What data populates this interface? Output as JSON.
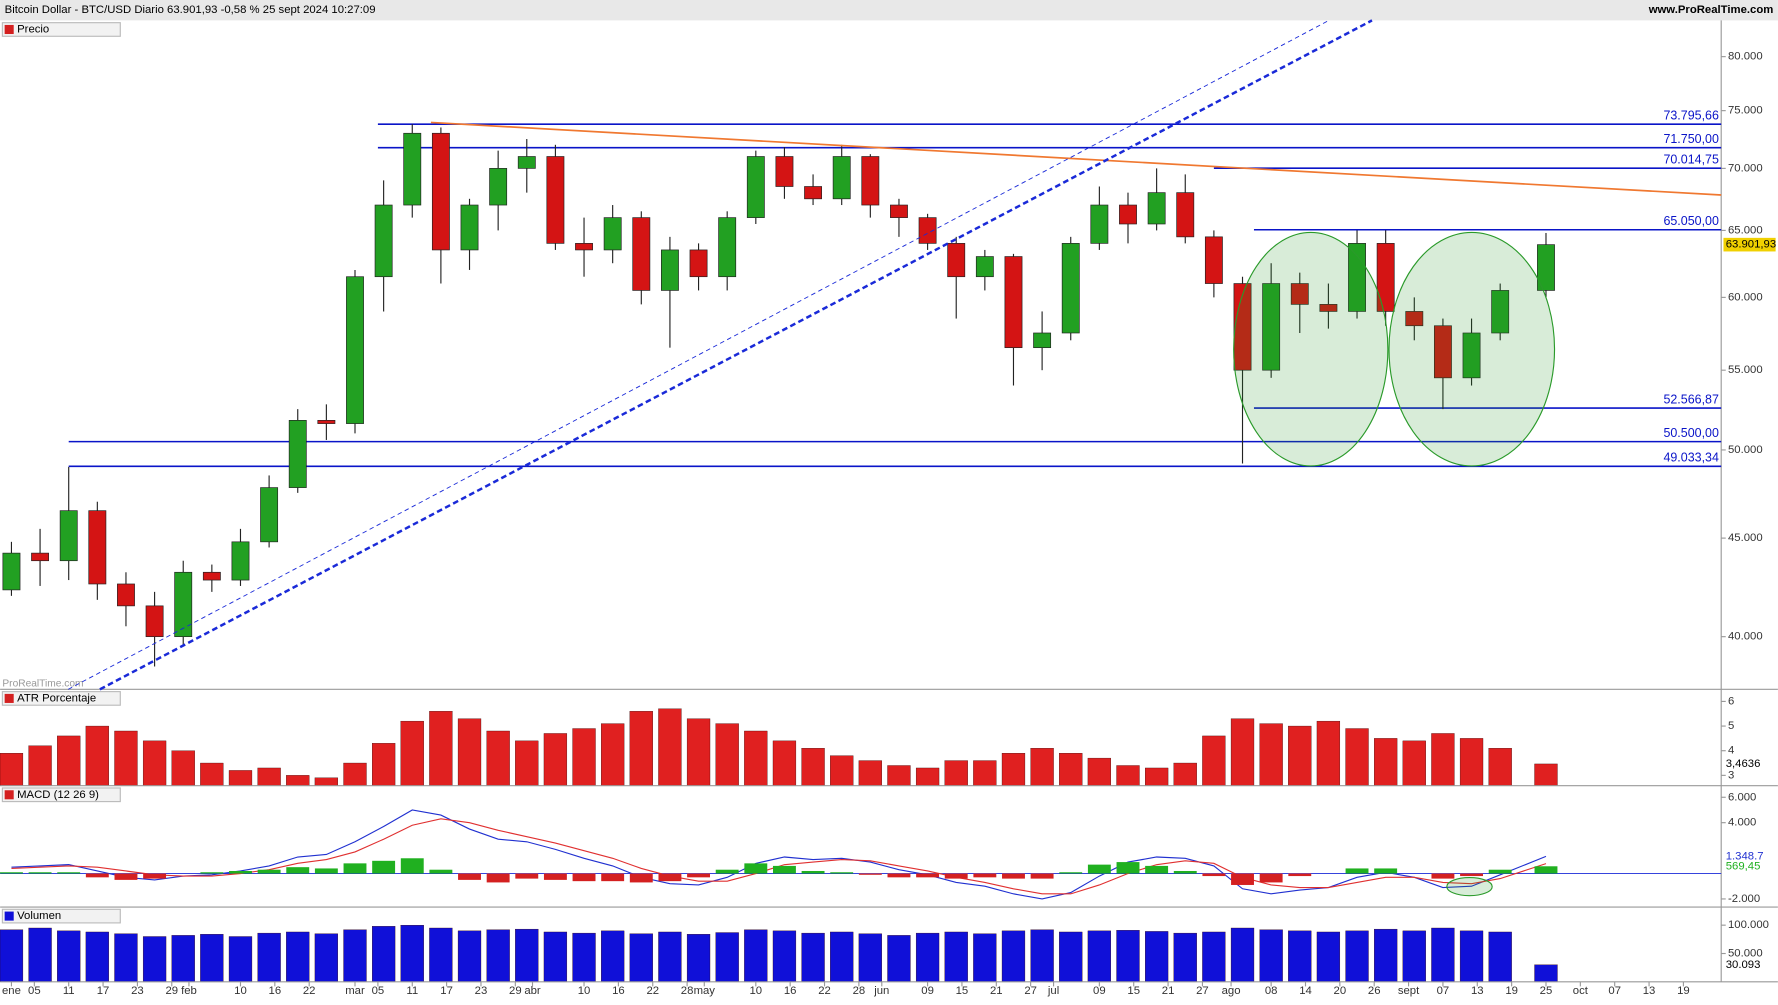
{
  "header": {
    "title": "Bitcoin Dollar - BTC/USD Diario 63.901,93 -0,58 % 25 sept 2024 10:27:09",
    "site": "www.ProRealTime.com",
    "watermark": "ProRealTime.com"
  },
  "chart_data": [
    {
      "type": "candlestick",
      "title": "Precio",
      "log": true,
      "up_color": "#22a022",
      "down_color": "#d41414",
      "x": [
        0,
        5,
        10,
        15,
        20,
        25,
        30,
        35,
        40,
        45,
        50,
        55,
        60,
        65,
        70,
        75,
        80,
        85,
        90,
        95,
        100,
        105,
        110,
        115,
        120,
        125,
        130,
        135,
        140,
        145,
        150,
        155,
        160,
        165,
        170,
        175,
        180,
        185,
        190,
        195,
        200,
        205,
        210,
        215,
        220,
        225,
        230,
        235,
        240,
        245,
        250,
        255,
        260,
        268
      ],
      "open": [
        42300,
        44200,
        43800,
        46500,
        42600,
        41500,
        40000,
        43200,
        42800,
        44800,
        47800,
        51800,
        51600,
        61500,
        67000,
        73000,
        63500,
        67000,
        70000,
        71000,
        64000,
        63500,
        66000,
        60500,
        63500,
        61500,
        66000,
        71000,
        68500,
        67500,
        71000,
        67000,
        66000,
        64000,
        61500,
        63000,
        56500,
        57500,
        64000,
        67000,
        65500,
        68000,
        64500,
        61000,
        55000,
        61000,
        59500,
        59000,
        64000,
        59000,
        58000,
        54500,
        57500,
        60500
      ],
      "high": [
        44800,
        45500,
        49000,
        47000,
        43200,
        42200,
        43800,
        43600,
        45500,
        48500,
        52500,
        52800,
        62000,
        69000,
        73800,
        73500,
        67500,
        71500,
        72500,
        72000,
        66000,
        67000,
        66500,
        64500,
        64000,
        66500,
        71500,
        71800,
        69500,
        72000,
        71200,
        67500,
        66300,
        64500,
        63500,
        63200,
        59000,
        64500,
        68500,
        68000,
        70000,
        69500,
        65000,
        61500,
        62500,
        61800,
        61000,
        65000,
        65000,
        60000,
        58500,
        58500,
        61000,
        64800
      ],
      "low": [
        42000,
        42500,
        42800,
        41800,
        40500,
        38600,
        39600,
        42200,
        42500,
        44500,
        47500,
        50600,
        51000,
        59000,
        66000,
        61000,
        62000,
        65000,
        68000,
        63500,
        61500,
        62500,
        59500,
        56500,
        60500,
        60500,
        65500,
        67500,
        67000,
        67000,
        66000,
        64500,
        63500,
        58500,
        60500,
        54000,
        55000,
        57000,
        63500,
        64000,
        65000,
        64000,
        60000,
        49200,
        54500,
        57500,
        57800,
        58500,
        58000,
        57000,
        52500,
        54000,
        57000,
        60000
      ],
      "close": [
        44200,
        43800,
        46500,
        42600,
        41500,
        40000,
        43200,
        42800,
        44800,
        47800,
        51800,
        51600,
        61500,
        67000,
        73000,
        63500,
        67000,
        70000,
        71000,
        64000,
        63500,
        66000,
        60500,
        63500,
        61500,
        66000,
        71000,
        68500,
        67500,
        71000,
        67000,
        66000,
        64000,
        61500,
        63000,
        56500,
        57500,
        64000,
        67000,
        65500,
        68000,
        64500,
        61000,
        55000,
        61000,
        59500,
        59000,
        64000,
        59000,
        58000,
        54500,
        57500,
        60500,
        63901.93
      ],
      "last_label": "63.901,93",
      "xlim": [
        -1.98,
        298.6
      ],
      "ylim": [
        37560,
        83540
      ],
      "yticks": [
        {
          "value": 40000,
          "label": "40.000"
        },
        {
          "value": 45000,
          "label": "45.000"
        },
        {
          "value": 50000,
          "label": "50.000"
        },
        {
          "value": 55000,
          "label": "55.000"
        },
        {
          "value": 60000,
          "label": "60.000"
        },
        {
          "value": 65000,
          "label": "65.000"
        },
        {
          "value": 70000,
          "label": "70.000"
        },
        {
          "value": 75000,
          "label": "75.000"
        },
        {
          "value": 80000,
          "label": "80.000"
        }
      ],
      "levels": [
        {
          "value": 73795.66,
          "label": "73.795,66",
          "x_start": 64
        },
        {
          "value": 71750,
          "label": "71.750,00",
          "x_start": 64
        },
        {
          "value": 70014.75,
          "label": "70.014,75",
          "x_start": 210
        },
        {
          "value": 65050,
          "label": "65.050,00",
          "x_start": 217
        },
        {
          "value": 52566.87,
          "label": "52.566,87",
          "x_start": 217
        },
        {
          "value": 50500,
          "label": "50.500,00",
          "x_start": 10
        },
        {
          "value": 49033.34,
          "label": "49.033,34",
          "x_start": 10
        }
      ],
      "xticks": [
        {
          "value": 0,
          "label": "ene"
        },
        {
          "value": 4,
          "label": "05"
        },
        {
          "value": 10,
          "label": "11"
        },
        {
          "value": 16,
          "label": "17"
        },
        {
          "value": 22,
          "label": "23"
        },
        {
          "value": 28,
          "label": "29"
        },
        {
          "value": 31,
          "label": "feb"
        },
        {
          "value": 40,
          "label": "10"
        },
        {
          "value": 46,
          "label": "16"
        },
        {
          "value": 52,
          "label": "22"
        },
        {
          "value": 60,
          "label": "mar"
        },
        {
          "value": 64,
          "label": "05"
        },
        {
          "value": 70,
          "label": "11"
        },
        {
          "value": 76,
          "label": "17"
        },
        {
          "value": 82,
          "label": "23"
        },
        {
          "value": 88,
          "label": "29"
        },
        {
          "value": 91,
          "label": "abr"
        },
        {
          "value": 100,
          "label": "10"
        },
        {
          "value": 106,
          "label": "16"
        },
        {
          "value": 112,
          "label": "22"
        },
        {
          "value": 118,
          "label": "28"
        },
        {
          "value": 121,
          "label": "may"
        },
        {
          "value": 130,
          "label": "10"
        },
        {
          "value": 136,
          "label": "16"
        },
        {
          "value": 142,
          "label": "22"
        },
        {
          "value": 148,
          "label": "28"
        },
        {
          "value": 152,
          "label": "jun"
        },
        {
          "value": 160,
          "label": "09"
        },
        {
          "value": 166,
          "label": "15"
        },
        {
          "value": 172,
          "label": "21"
        },
        {
          "value": 178,
          "label": "27"
        },
        {
          "value": 182,
          "label": "jul"
        },
        {
          "value": 190,
          "label": "09"
        },
        {
          "value": 196,
          "label": "15"
        },
        {
          "value": 202,
          "label": "21"
        },
        {
          "value": 208,
          "label": "27"
        },
        {
          "value": 213,
          "label": "ago"
        },
        {
          "value": 220,
          "label": "08"
        },
        {
          "value": 226,
          "label": "14"
        },
        {
          "value": 232,
          "label": "20"
        },
        {
          "value": 238,
          "label": "26"
        },
        {
          "value": 244,
          "label": "sept"
        },
        {
          "value": 250,
          "label": "07"
        },
        {
          "value": 256,
          "label": "13"
        },
        {
          "value": 262,
          "label": "19"
        },
        {
          "value": 268,
          "label": "25"
        },
        {
          "value": 274,
          "label": "oct"
        },
        {
          "value": 280,
          "label": "07"
        },
        {
          "value": 286,
          "label": "13"
        },
        {
          "value": 292,
          "label": "19"
        }
      ]
    },
    {
      "type": "bar",
      "title": "ATR Porcentaje",
      "color": "#e02020",
      "values": [
        3.9,
        4.2,
        4.6,
        5.0,
        4.8,
        4.4,
        4.0,
        3.5,
        3.2,
        3.3,
        3.0,
        2.9,
        3.5,
        4.3,
        5.2,
        5.6,
        5.3,
        4.8,
        4.4,
        4.7,
        4.9,
        5.1,
        5.6,
        5.7,
        5.3,
        5.1,
        4.8,
        4.4,
        4.1,
        3.8,
        3.6,
        3.4,
        3.3,
        3.6,
        3.6,
        3.9,
        4.1,
        3.9,
        3.7,
        3.4,
        3.3,
        3.5,
        4.6,
        5.3,
        5.1,
        5.0,
        5.2,
        4.9,
        4.5,
        4.4,
        4.7,
        4.5,
        4.1,
        3.4636
      ],
      "last_label": "3,4636",
      "ylim": [
        2.58,
        6.49
      ],
      "yticks": [
        3,
        4,
        5,
        6
      ]
    },
    {
      "type": "line",
      "title": "MACD (12 26 9)",
      "series": [
        {
          "color": "#2030d0",
          "values": [
            500,
            600,
            700,
            200,
            -300,
            -500,
            -200,
            -100,
            200,
            600,
            1300,
            1500,
            2500,
            3700,
            5000,
            4600,
            3500,
            2700,
            2500,
            1900,
            1200,
            600,
            -300,
            -800,
            -900,
            -300,
            800,
            1300,
            1100,
            1200,
            900,
            300,
            -100,
            -700,
            -1000,
            -1600,
            -2000,
            -1500,
            -200,
            900,
            1300,
            1200,
            600,
            -1200,
            -1600,
            -1300,
            -1100,
            -300,
            100,
            -300,
            -1100,
            -1000,
            -100,
            1348.7
          ],
          "last_label": "1.348,7"
        },
        {
          "color": "#e03030",
          "values": [
            400,
            500,
            600,
            500,
            200,
            -100,
            -200,
            -200,
            0,
            300,
            800,
            1100,
            1700,
            2700,
            3800,
            4300,
            4000,
            3400,
            2900,
            2400,
            1800,
            1200,
            400,
            -200,
            -600,
            -600,
            0,
            700,
            900,
            1100,
            1000,
            600,
            200,
            -300,
            -700,
            -1200,
            -1600,
            -1600,
            -900,
            0,
            700,
            1000,
            800,
            -300,
            -900,
            -1100,
            -1100,
            -700,
            -300,
            -300,
            -700,
            -800,
            -400,
            779.29
          ]
        },
        {
          "type": "bar",
          "color": "#20b020",
          "down_color": "#d42020",
          "values": [
            100,
            100,
            100,
            -300,
            -500,
            -400,
            0,
            100,
            200,
            300,
            500,
            400,
            800,
            1000,
            1200,
            300,
            -500,
            -700,
            -400,
            -500,
            -600,
            -600,
            -700,
            -600,
            -300,
            300,
            800,
            600,
            200,
            100,
            -100,
            -300,
            -300,
            -400,
            -300,
            -400,
            -400,
            100,
            700,
            900,
            600,
            200,
            -200,
            -900,
            -700,
            -200,
            0,
            400,
            400,
            0,
            -400,
            -200,
            300,
            569.45
          ],
          "last_label": "569,45"
        }
      ],
      "ylim": [
        -2636,
        6909
      ],
      "yticks": [
        {
          "value": -2000,
          "label": "-2.000"
        },
        {
          "value": 4000,
          "label": "4.000"
        },
        {
          "value": 6000,
          "label": "6.000"
        }
      ]
    },
    {
      "type": "bar",
      "title": "Volumen",
      "color": "#1010d8",
      "values": [
        92000,
        95000,
        90000,
        88000,
        85000,
        80000,
        82000,
        84000,
        80000,
        86000,
        88000,
        85000,
        92000,
        98000,
        100000,
        95000,
        90000,
        92000,
        93000,
        88000,
        86000,
        90000,
        85000,
        88000,
        84000,
        87000,
        92000,
        90000,
        86000,
        88000,
        85000,
        82000,
        86000,
        88000,
        85000,
        90000,
        92000,
        88000,
        90000,
        91000,
        89000,
        86000,
        88000,
        95000,
        92000,
        90000,
        88000,
        90000,
        93000,
        90000,
        95000,
        90000,
        88000,
        30093
      ],
      "last_label": "30.093",
      "ylim": [
        0,
        132000
      ],
      "yticks": [
        {
          "value": 50000,
          "label": "50.000"
        },
        {
          "value": 100000,
          "label": "100.000"
        }
      ]
    }
  ]
}
